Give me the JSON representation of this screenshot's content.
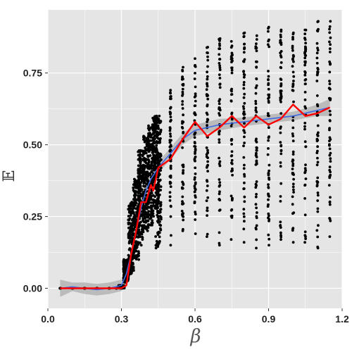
{
  "chart_data": {
    "type": "scatter",
    "title": "",
    "xlabel": "β",
    "ylabel": "𝔼",
    "xlim": [
      0.0,
      1.2
    ],
    "ylim": [
      -0.07,
      0.97
    ],
    "x_ticks": [
      0.0,
      0.3,
      0.6,
      0.9,
      1.2
    ],
    "x_tick_labels": [
      "0.0",
      "0.3",
      "0.6",
      "0.9",
      "1.2"
    ],
    "y_ticks": [
      0.0,
      0.25,
      0.5,
      0.75
    ],
    "y_tick_labels": [
      "0.00",
      "0.25",
      "0.50",
      "0.75"
    ],
    "grid": true,
    "panel_background": "#e5e5e5",
    "grid_color": "#ffffff",
    "scatter_x": [
      0.05,
      0.1,
      0.15,
      0.2,
      0.25,
      0.28,
      0.3,
      0.32,
      0.34,
      0.36,
      0.38,
      0.4,
      0.42,
      0.44,
      0.45,
      0.5,
      0.55,
      0.6,
      0.65,
      0.7,
      0.75,
      0.8,
      0.85,
      0.9,
      0.95,
      1.0,
      1.05,
      1.1,
      1.15
    ],
    "scatter_ymin": [
      0.0,
      0.0,
      0.0,
      0.0,
      0.0,
      0.0,
      0.0,
      0.02,
      0.05,
      0.1,
      0.15,
      0.2,
      0.22,
      0.25,
      0.14,
      0.15,
      0.2,
      0.19,
      0.18,
      0.15,
      0.17,
      0.16,
      0.14,
      0.15,
      0.17,
      0.16,
      0.16,
      0.14,
      0.18
    ],
    "scatter_ymax": [
      0.0,
      0.0,
      0.0,
      0.0,
      0.0,
      0.0,
      0.01,
      0.1,
      0.3,
      0.38,
      0.48,
      0.53,
      0.57,
      0.6,
      0.6,
      0.69,
      0.77,
      0.8,
      0.84,
      0.87,
      0.86,
      0.89,
      0.88,
      0.91,
      0.9,
      0.89,
      0.9,
      0.93,
      0.93
    ],
    "scatter_color": "#000000",
    "series": [
      {
        "kind": "mean-line",
        "color": "#ff0000",
        "x": [
          0.05,
          0.1,
          0.15,
          0.2,
          0.25,
          0.28,
          0.3,
          0.32,
          0.34,
          0.36,
          0.38,
          0.4,
          0.42,
          0.43,
          0.45,
          0.5,
          0.55,
          0.6,
          0.65,
          0.7,
          0.75,
          0.8,
          0.85,
          0.9,
          0.95,
          1.0,
          1.05,
          1.1,
          1.15
        ],
        "y": [
          0.0,
          0.0,
          0.0,
          0.0,
          0.0,
          0.0,
          0.0,
          0.01,
          0.12,
          0.2,
          0.3,
          0.3,
          0.36,
          0.34,
          0.42,
          0.45,
          0.52,
          0.58,
          0.53,
          0.56,
          0.6,
          0.56,
          0.6,
          0.57,
          0.59,
          0.64,
          0.6,
          0.61,
          0.63
        ]
      },
      {
        "kind": "smooth",
        "color": "#4169e1",
        "ribbon_color": "#999999",
        "x": [
          0.05,
          0.1,
          0.15,
          0.2,
          0.25,
          0.3,
          0.32,
          0.34,
          0.36,
          0.38,
          0.4,
          0.42,
          0.45,
          0.5,
          0.55,
          0.6,
          0.7,
          0.8,
          0.9,
          1.0,
          1.1,
          1.15
        ],
        "y": [
          0.0,
          0.005,
          0.0,
          -0.005,
          0.0,
          0.01,
          0.05,
          0.12,
          0.2,
          0.28,
          0.34,
          0.38,
          0.42,
          0.47,
          0.52,
          0.55,
          0.57,
          0.58,
          0.59,
          0.6,
          0.62,
          0.63
        ],
        "ylo": [
          -0.03,
          -0.01,
          -0.02,
          -0.025,
          -0.02,
          -0.01,
          0.03,
          0.1,
          0.18,
          0.26,
          0.32,
          0.36,
          0.4,
          0.45,
          0.5,
          0.53,
          0.55,
          0.565,
          0.575,
          0.585,
          0.6,
          0.6
        ],
        "yhi": [
          0.03,
          0.02,
          0.02,
          0.015,
          0.02,
          0.03,
          0.07,
          0.14,
          0.22,
          0.3,
          0.36,
          0.4,
          0.44,
          0.49,
          0.54,
          0.57,
          0.59,
          0.595,
          0.605,
          0.615,
          0.64,
          0.66
        ]
      }
    ]
  }
}
